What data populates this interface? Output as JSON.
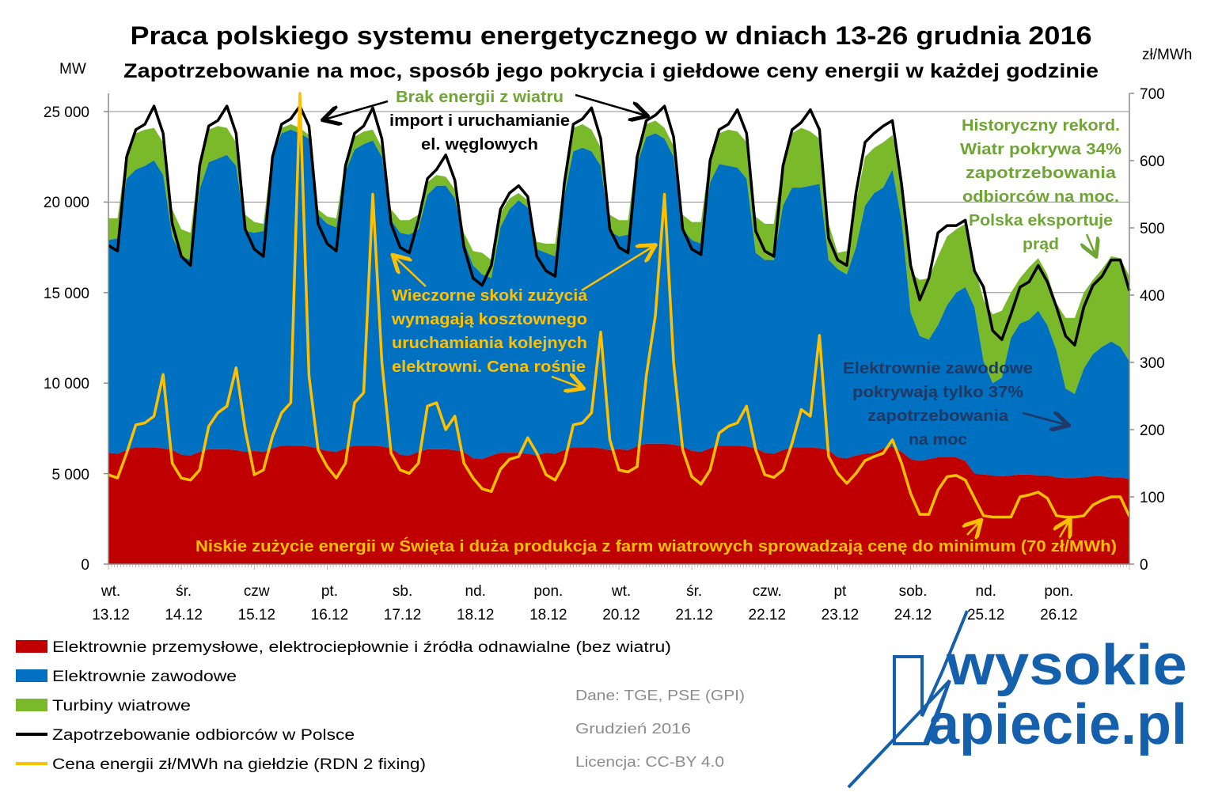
{
  "chart_data": {
    "type": "area",
    "title": "Praca polskiego systemu energetycznego w dniach 13-26 grudnia 2016",
    "subtitle": "Zapotrzebowanie na moc, sposób jego pokrycia i giełdowe ceny energii w każdej godzinie",
    "ylabel_left": "MW",
    "ylabel_right": "zł/MWh",
    "ylim_left": [
      0,
      25000
    ],
    "ylim_right": [
      0,
      700
    ],
    "yticks_left": [
      "25 000",
      "20 000",
      "15 000",
      "10 000",
      "5 000",
      "0"
    ],
    "yticks_right": [
      "700",
      "600",
      "500",
      "400",
      "300",
      "200",
      "100",
      "0"
    ],
    "x_weekdays": [
      "wt.",
      "śr.",
      "czw",
      "pt.",
      "sb.",
      "nd.",
      "pon.",
      "wt.",
      "śr.",
      "czw.",
      "pt",
      "sob.",
      "nd.",
      "pon."
    ],
    "x_dates": [
      "13.12",
      "14.12",
      "15.12",
      "16.12",
      "17.12",
      "18.12",
      "18.12",
      "20.12",
      "21.12",
      "22.12",
      "23.12",
      "24.12",
      "25.12",
      "26.12"
    ],
    "sampling_hours": [
      0,
      3,
      6,
      9,
      12,
      15,
      18,
      21
    ],
    "grid": true,
    "legend_position": "bottom-left",
    "series": {
      "przemyslowe": {
        "name": "Elektrownie przemysłowe, elektrociepłownie i źródła odnawialne (bez wiatru)",
        "color": "#c00000",
        "unit": "MW",
        "days": [
          [
            6150,
            6100,
            6300,
            6450,
            6450,
            6450,
            6400,
            6300
          ],
          [
            6050,
            6000,
            6200,
            6350,
            6350,
            6350,
            6300,
            6200
          ],
          [
            6250,
            6200,
            6400,
            6550,
            6550,
            6550,
            6500,
            6400
          ],
          [
            6250,
            6200,
            6400,
            6550,
            6550,
            6550,
            6500,
            6400
          ],
          [
            6050,
            6000,
            6200,
            6350,
            6350,
            6350,
            6300,
            6200
          ],
          [
            5850,
            5800,
            6000,
            6150,
            6150,
            6150,
            6100,
            6000
          ],
          [
            6150,
            6100,
            6300,
            6450,
            6450,
            6450,
            6400,
            6300
          ],
          [
            6350,
            6300,
            6500,
            6650,
            6650,
            6650,
            6600,
            6500
          ],
          [
            6250,
            6200,
            6400,
            6550,
            6550,
            6550,
            6500,
            6400
          ],
          [
            6150,
            6100,
            6300,
            6450,
            6450,
            6450,
            6400,
            6300
          ],
          [
            5900,
            5850,
            6000,
            6100,
            6150,
            6400,
            6500,
            6200
          ],
          [
            5800,
            5700,
            5800,
            5900,
            5900,
            5900,
            5700,
            5000
          ],
          [
            4950,
            4900,
            4850,
            4900,
            4950,
            4950,
            4900,
            4900
          ],
          [
            4800,
            4750,
            4750,
            4800,
            4850,
            4850,
            4800,
            4800
          ]
        ],
        "end": 4700
      },
      "zawodowe": {
        "name": "Elektrownie zawodowe",
        "color": "#0070c0",
        "unit": "MW",
        "days": [
          [
            11750,
            11900,
            15000,
            15350,
            15550,
            15850,
            15100,
            11800
          ],
          [
            10950,
            10800,
            14500,
            15850,
            16050,
            16250,
            15700,
            12200
          ],
          [
            12050,
            12200,
            16100,
            17250,
            17450,
            17250,
            17000,
            12900
          ],
          [
            12550,
            12400,
            15300,
            16350,
            16650,
            16850,
            16000,
            12600
          ],
          [
            12250,
            12200,
            12300,
            14050,
            14550,
            14550,
            13900,
            11600
          ],
          [
            10650,
            10200,
            9800,
            12450,
            13450,
            13950,
            13600,
            11400
          ],
          [
            11050,
            10900,
            14000,
            16350,
            16550,
            16350,
            15600,
            12100
          ],
          [
            11750,
            11900,
            15600,
            16950,
            17150,
            16850,
            15900,
            12000
          ],
          [
            11650,
            11500,
            14700,
            15550,
            15450,
            15350,
            14800,
            10800
          ],
          [
            10650,
            10700,
            13500,
            14350,
            14350,
            14450,
            14600,
            10500
          ],
          [
            10400,
            10150,
            11500,
            13700,
            14350,
            14400,
            15300,
            12800
          ],
          [
            8100,
            6900,
            6600,
            7300,
            8400,
            9100,
            9600,
            9200
          ],
          [
            6250,
            5100,
            5450,
            7600,
            8350,
            8550,
            9100,
            8300
          ],
          [
            7000,
            4950,
            4650,
            6000,
            6750,
            7150,
            7500,
            7200
          ]
        ],
        "end": 6500
      },
      "wiatr": {
        "name": "Turbiny wiatrowe",
        "color": "#7ab929",
        "unit": "MW",
        "days": [
          [
            1200,
            1100,
            1500,
            2000,
            2000,
            1800,
            1800,
            1500
          ],
          [
            1500,
            1500,
            1600,
            1800,
            1800,
            1500,
            1300,
            900
          ],
          [
            600,
            400,
            300,
            300,
            300,
            300,
            200,
            300
          ],
          [
            400,
            500,
            600,
            700,
            700,
            600,
            500,
            600
          ],
          [
            700,
            800,
            800,
            700,
            600,
            500,
            500,
            500
          ],
          [
            800,
            1200,
            1000,
            800,
            600,
            400,
            400,
            400
          ],
          [
            500,
            700,
            1000,
            1300,
            1300,
            1200,
            1000,
            900
          ],
          [
            900,
            800,
            700,
            700,
            700,
            600,
            600,
            800
          ],
          [
            1000,
            1200,
            1500,
            1700,
            2000,
            2000,
            2000,
            2000
          ],
          [
            2000,
            2000,
            2500,
            3000,
            3300,
            3000,
            2500,
            2000
          ],
          [
            900,
            1300,
            2500,
            2700,
            2500,
            2500,
            1900,
            2500
          ],
          [
            2200,
            3100,
            3400,
            3800,
            3800,
            3500,
            3500,
            2300
          ],
          [
            3400,
            3800,
            3700,
            2500,
            2500,
            2900,
            2900,
            2800
          ],
          [
            2600,
            3900,
            4200,
            4200,
            4100,
            4300,
            4700,
            4900
          ]
        ],
        "end": 4700
      },
      "zapotrzebowanie": {
        "name": "Zapotrzebowanie odbiorców w Polsce",
        "color": "#000000",
        "unit": "MW",
        "days": [
          [
            17600,
            17300,
            22500,
            24000,
            24300,
            25300,
            23800,
            18800
          ],
          [
            17000,
            16500,
            22000,
            24200,
            24500,
            25300,
            23800,
            18500
          ],
          [
            17400,
            17000,
            22500,
            24300,
            24600,
            25300,
            24200,
            18800
          ],
          [
            17700,
            17300,
            22000,
            23800,
            24200,
            25200,
            23500,
            18800
          ],
          [
            17500,
            17200,
            19000,
            21300,
            21800,
            22600,
            21200,
            17500
          ],
          [
            15800,
            15400,
            16500,
            19600,
            20500,
            20900,
            20300,
            17000
          ],
          [
            16200,
            15900,
            21000,
            24300,
            24600,
            25200,
            23500,
            18500
          ],
          [
            17500,
            17200,
            22500,
            24500,
            24800,
            25300,
            23600,
            18500
          ],
          [
            17400,
            17100,
            22300,
            24000,
            24300,
            25100,
            23800,
            18400
          ],
          [
            17300,
            17000,
            22000,
            24000,
            24400,
            25100,
            24000,
            18000
          ],
          [
            16800,
            16500,
            20500,
            23300,
            23800,
            24200,
            24500,
            21000
          ],
          [
            16500,
            14600,
            15800,
            18300,
            18700,
            18700,
            19000,
            16200
          ],
          [
            15300,
            12900,
            12400,
            13800,
            15300,
            15600,
            16500,
            15600
          ],
          [
            14200,
            12600,
            12100,
            14200,
            15400,
            15900,
            16800,
            16800
          ]
        ],
        "end": 15100
      },
      "cena": {
        "name": "Cena energii zł/MWh na giełdzie (RDN 2 fixing)",
        "color": "#ffc000",
        "unit": "zł/MWh",
        "days": [
          [
            133,
            128,
            165,
            207,
            210,
            220,
            282,
            150
          ],
          [
            128,
            125,
            140,
            205,
            225,
            235,
            292,
            200
          ],
          [
            133,
            140,
            190,
            225,
            240,
            700,
            280,
            170
          ],
          [
            145,
            128,
            150,
            240,
            255,
            550,
            300,
            165
          ],
          [
            140,
            135,
            150,
            235,
            240,
            200,
            220,
            150
          ],
          [
            128,
            112,
            108,
            141,
            156,
            160,
            188,
            165
          ],
          [
            133,
            125,
            150,
            207,
            210,
            225,
            345,
            185
          ],
          [
            140,
            137,
            145,
            280,
            370,
            550,
            300,
            170
          ],
          [
            130,
            119,
            140,
            195,
            205,
            210,
            235,
            170
          ],
          [
            133,
            129,
            140,
            180,
            230,
            220,
            340,
            160
          ],
          [
            135,
            120,
            135,
            154,
            160,
            165,
            185,
            150
          ],
          [
            105,
            74,
            74,
            110,
            130,
            132,
            125,
            98
          ],
          [
            72,
            70,
            70,
            70,
            100,
            103,
            107,
            98
          ],
          [
            72,
            70,
            70,
            72,
            88,
            95,
            100,
            100
          ]
        ],
        "end": 71
      }
    },
    "annotations": {
      "wind_gap": {
        "line1": "Brak energii z wiatru",
        "line2": "import i uruchamianie",
        "line3": "el. węglowych"
      },
      "record": [
        "Historyczny rekord.",
        "Wiatr pokrywa 34%",
        "zapotrzebowania",
        "odbiorców na moc.",
        "Polska eksportuje",
        "prąd"
      ],
      "evening": [
        "Wieczorne skoki zużycia",
        "wymagają kosztownego",
        "uruchamiania kolejnych",
        "elektrowni. Cena rośnie"
      ],
      "professional": [
        "Elektrownie zawodowe",
        "pokrywają tylko 37%",
        "zapotrzebowania",
        "na moc"
      ],
      "holidays": "Niskie zużycie energii w Święta i duża produkcja z farm wiatrowych sprowadzają cenę do minimum (70 zł/MWh)"
    }
  },
  "legend": [
    {
      "label": "Elektrownie przemysłowe, elektrociepłownie i źródła odnawialne (bez wiatru)",
      "color": "#c00000"
    },
    {
      "label": "Elektrownie zawodowe",
      "color": "#0070c0"
    },
    {
      "label": "Turbiny wiatrowe",
      "color": "#7ab929"
    },
    {
      "label": "Zapotrzebowanie odbiorców w Polsce",
      "color": "#000000"
    },
    {
      "label": "Cena energii zł/MWh na giełdzie (RDN 2 fixing)",
      "color": "#ffc000"
    }
  ],
  "source": {
    "data": "Dane:  TGE, PSE (GPI)",
    "date": "Grudzień 2016",
    "license": "Licencja: CC-BY 4.0"
  },
  "logo": {
    "line1": "wysokie",
    "line2": "apiecie.pl",
    "color": "#1560ac"
  }
}
